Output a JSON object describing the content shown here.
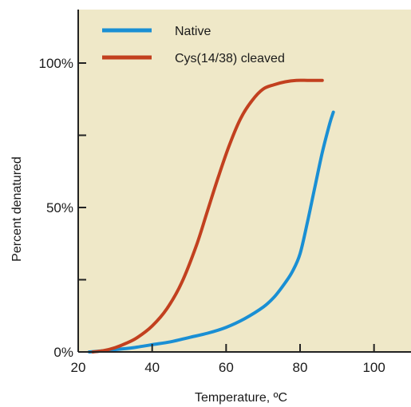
{
  "chart_data": {
    "type": "line",
    "title": "",
    "xlabel": "Temperature, ºC",
    "ylabel": "Percent denatured",
    "xlim": [
      20,
      110
    ],
    "ylim": [
      0,
      100
    ],
    "x_ticks": [
      {
        "value": 20,
        "label": "20"
      },
      {
        "value": 40,
        "label": "40"
      },
      {
        "value": 60,
        "label": "60"
      },
      {
        "value": 80,
        "label": "80"
      },
      {
        "value": 100,
        "label": "100"
      }
    ],
    "y_ticks": [
      {
        "value": 0,
        "label": "0%"
      },
      {
        "value": 50,
        "label": "50%"
      },
      {
        "value": 100,
        "label": "100%"
      }
    ],
    "y_minor_ticks": [
      25,
      75
    ],
    "grid": false,
    "legend_position": "top-left",
    "plot_background": "#efe8c8",
    "series": [
      {
        "name": "Native",
        "color": "#1a8fd4",
        "x": [
          23,
          26,
          30,
          35,
          40,
          45,
          50,
          55,
          60,
          65,
          70,
          73,
          76,
          78,
          80,
          82,
          84,
          86,
          88,
          89
        ],
        "y": [
          0,
          0.3,
          0.8,
          1.5,
          2.5,
          3.5,
          5,
          6.5,
          8.5,
          11.5,
          15.5,
          19,
          24,
          28,
          34,
          45,
          57,
          69,
          79,
          83
        ]
      },
      {
        "name": "Cys(14/38) cleaved",
        "color": "#c2401f",
        "x": [
          24,
          27,
          30,
          33,
          36,
          40,
          44,
          48,
          52,
          55,
          58,
          61,
          64,
          67,
          70,
          73,
          76,
          79,
          82,
          85,
          86
        ],
        "y": [
          0,
          0.5,
          1.5,
          3,
          5,
          9,
          15,
          24,
          37,
          49,
          61,
          72,
          81,
          87,
          91,
          92.5,
          93.5,
          94,
          94,
          94,
          94
        ]
      }
    ]
  }
}
